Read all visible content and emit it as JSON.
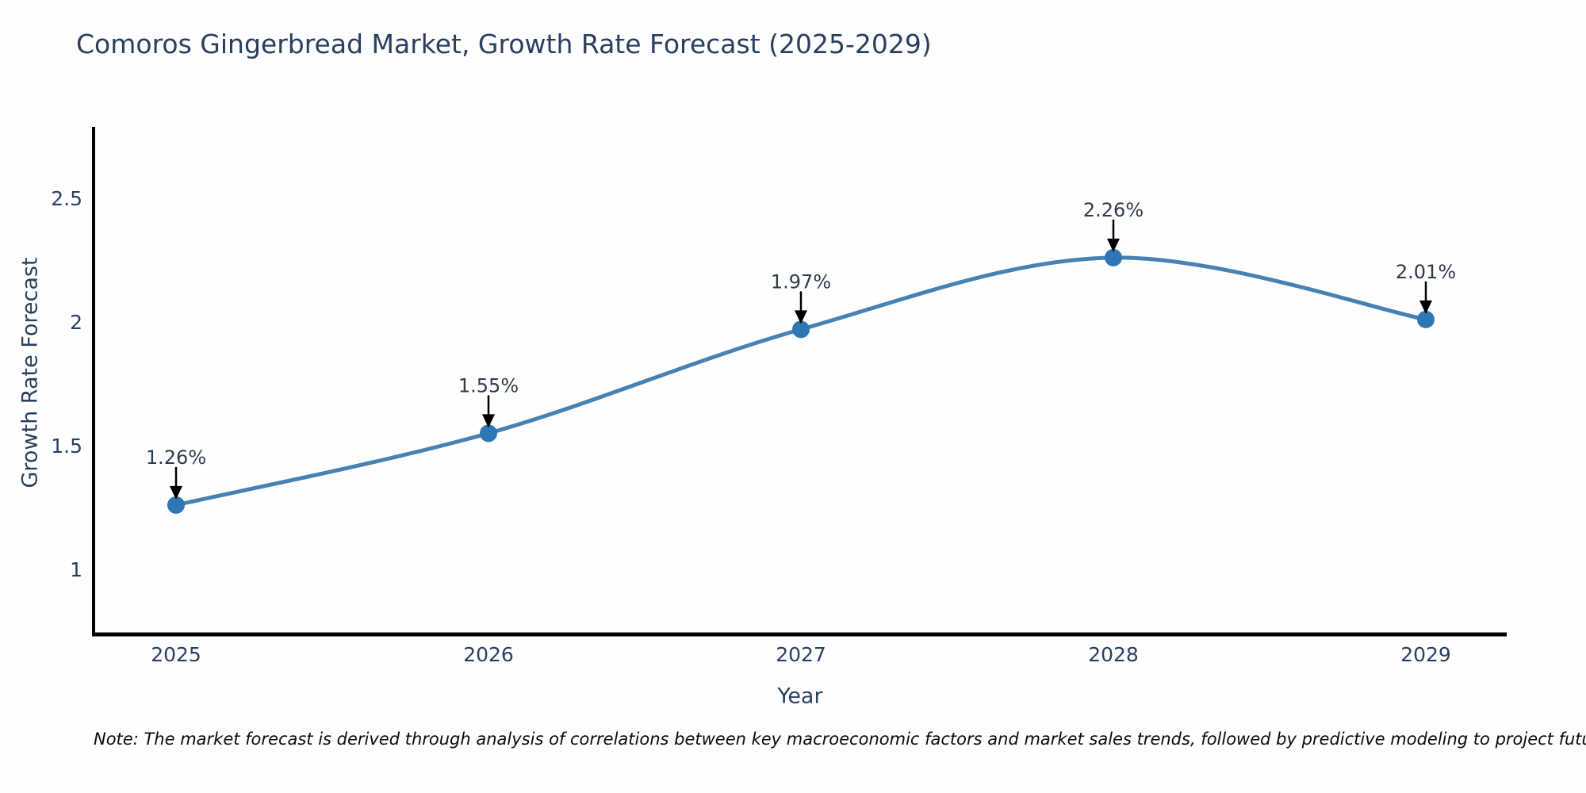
{
  "title": "Comoros Gingerbread Market, Growth Rate Forecast (2025-2029)",
  "note": "Note: The market forecast is derived through analysis of correlations between key macroeconomic factors and market sales trends, followed by predictive modeling to project future sales",
  "chart_data": {
    "type": "line",
    "title": "Comoros Gingerbread Market, Growth Rate Forecast (2025-2029)",
    "x": [
      2025,
      2026,
      2027,
      2028,
      2029
    ],
    "values": [
      1.26,
      1.55,
      1.97,
      2.26,
      2.01
    ],
    "point_labels": [
      "1.26%",
      "1.55%",
      "1.97%",
      "2.26%",
      "2.01%"
    ],
    "xlabel": "Year",
    "ylabel": "Growth Rate Forecast",
    "yticks": [
      1,
      1.5,
      2,
      2.5
    ],
    "ylim": [
      0.72,
      2.79
    ],
    "grid": false,
    "legend": "none",
    "marker_style": "circle",
    "annotation_style": "value-label-with-down-arrow",
    "colors": {
      "line": "#4682b4",
      "marker": "#2e76b5",
      "axis": "#000000",
      "text": "#2a3f5f",
      "annotation_text": "#2f3b4c",
      "arrow": "#000000"
    }
  }
}
